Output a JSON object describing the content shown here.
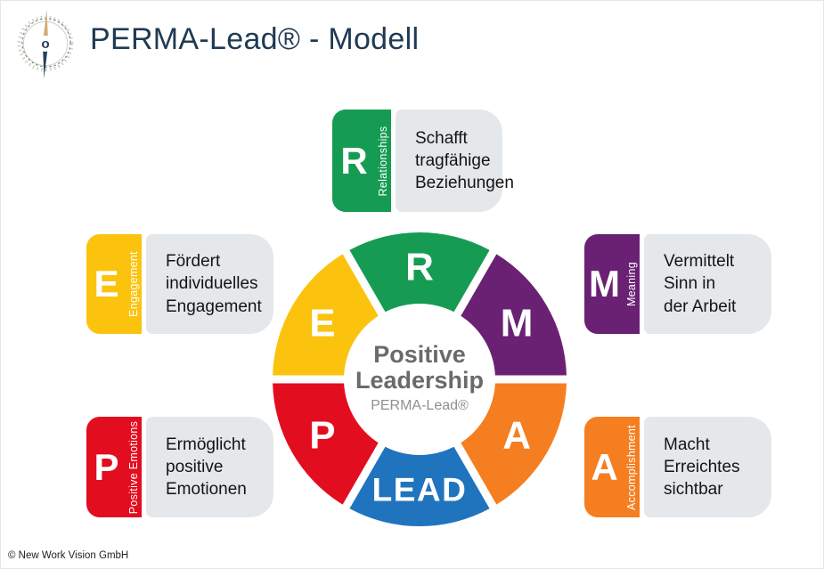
{
  "header": {
    "title": "PERMA-Lead® - Modell",
    "logo": "compass-icon"
  },
  "chart_data": {
    "type": "pie",
    "style": "donut",
    "outer_radius": 165,
    "inner_radius": 85,
    "center": {
      "line1": "Positive",
      "line2": "Leadership",
      "subtitle": "PERMA-Lead®"
    },
    "segments": [
      {
        "id": "relationships",
        "letter": "R",
        "name": "Relationships",
        "color": "#169B52",
        "angle_center": 90,
        "span": 60
      },
      {
        "id": "meaning",
        "letter": "M",
        "name": "Meaning",
        "color": "#6B2173",
        "angle_center": 30,
        "span": 60
      },
      {
        "id": "accomplishment",
        "letter": "A",
        "name": "Accomplishment",
        "color": "#F57E20",
        "angle_center": -30,
        "span": 60
      },
      {
        "id": "lead",
        "letter": "LEAD",
        "name": "LEAD",
        "color": "#2074BE",
        "angle_center": -90,
        "span": 60
      },
      {
        "id": "positive-emotions",
        "letter": "P",
        "name": "Positive Emotions",
        "color": "#E30D20",
        "angle_center": 210,
        "span": 60
      },
      {
        "id": "engagement",
        "letter": "E",
        "name": "Engagement",
        "color": "#FBC30E",
        "angle_center": 150,
        "span": 60
      }
    ]
  },
  "cards": [
    {
      "id": "relationships",
      "letter": "R",
      "label": "Relationships",
      "color": "#169B52",
      "text": "Schafft\ntragfähige\nBeziehungen"
    },
    {
      "id": "engagement",
      "letter": "E",
      "label": "Engagement",
      "color": "#FBC30E",
      "text": "Fördert\nindividuelles\nEngagement"
    },
    {
      "id": "meaning",
      "letter": "M",
      "label": "Meaning",
      "color": "#6B2173",
      "text": "Vermittelt\nSinn in\nder Arbeit"
    },
    {
      "id": "positive-emotions",
      "letter": "P",
      "label": "Positive Emotions",
      "color": "#E30D20",
      "text": "Ermöglicht\npositive\nEmotionen"
    },
    {
      "id": "accomplishment",
      "letter": "A",
      "label": "Accomplishment",
      "color": "#F57E20",
      "text": "Macht\nErreichtes\nsichtbar"
    }
  ],
  "footer": {
    "copyright": "© New Work Vision GmbH"
  },
  "colors": {
    "background": "#FFFFFF",
    "title_text": "#203A54",
    "card_bg": "#E4E8EB",
    "card_text": "#141414",
    "center_text": "#6A6A6A",
    "center_subtext": "#8F8F8F",
    "gap": "#FFFFFF"
  }
}
